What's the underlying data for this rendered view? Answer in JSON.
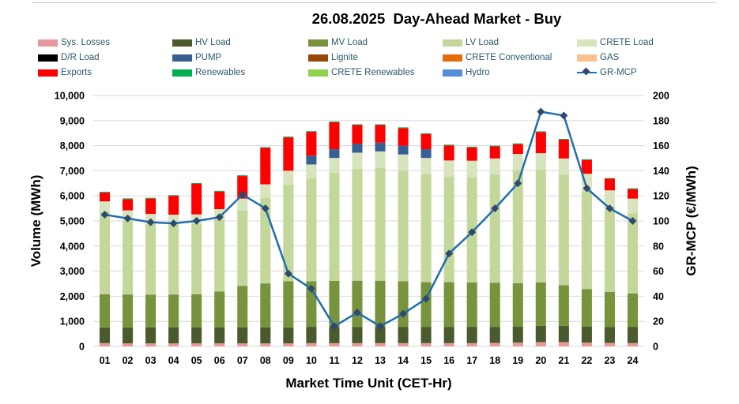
{
  "chart_data": {
    "type": "bar",
    "stacked": true,
    "title": "26.08.2025  Day-Ahead Market - Buy",
    "xlabel": "Market Time Unit (CET-Hr)",
    "ylabel": "Volume (MWh)",
    "y2label": "GR-MCP (€/MWh)",
    "ylim": [
      0,
      10000
    ],
    "y2lim": [
      0,
      200
    ],
    "y_ticks": [
      "0",
      "1,000",
      "2,000",
      "3,000",
      "4,000",
      "5,000",
      "6,000",
      "7,000",
      "8,000",
      "9,000",
      "10,000"
    ],
    "y2_ticks": [
      "0",
      "20",
      "40",
      "60",
      "80",
      "100",
      "120",
      "140",
      "160",
      "180",
      "200"
    ],
    "categories": [
      "01",
      "02",
      "03",
      "04",
      "05",
      "06",
      "07",
      "08",
      "09",
      "10",
      "11",
      "12",
      "13",
      "14",
      "15",
      "16",
      "17",
      "18",
      "19",
      "20",
      "21",
      "22",
      "23",
      "24"
    ],
    "series": [
      {
        "name": "Sys. Losses",
        "color": "#e6999b",
        "values": [
          130,
          120,
          120,
          120,
          120,
          120,
          120,
          120,
          120,
          130,
          130,
          130,
          130,
          130,
          130,
          130,
          130,
          140,
          150,
          170,
          170,
          150,
          140,
          130
        ]
      },
      {
        "name": "HV Load",
        "color": "#4a5a2c",
        "values": [
          620,
          630,
          640,
          640,
          640,
          640,
          640,
          640,
          630,
          640,
          640,
          640,
          640,
          640,
          640,
          640,
          640,
          640,
          640,
          650,
          650,
          640,
          640,
          640
        ]
      },
      {
        "name": "MV Load",
        "color": "#77933c",
        "values": [
          1330,
          1320,
          1300,
          1310,
          1320,
          1430,
          1650,
          1750,
          1850,
          1830,
          1840,
          1850,
          1850,
          1830,
          1790,
          1790,
          1780,
          1760,
          1730,
          1730,
          1620,
          1490,
          1390,
          1340
        ]
      },
      {
        "name": "LV Load",
        "color": "#c4d79b",
        "values": [
          3300,
          2950,
          2840,
          2800,
          2800,
          2880,
          3000,
          3400,
          3850,
          4100,
          4300,
          4450,
          4500,
          4400,
          4300,
          4200,
          4200,
          4300,
          4500,
          4500,
          4400,
          3900,
          3400,
          3200
        ]
      },
      {
        "name": "CRETE Load",
        "color": "#d7e4bd",
        "values": [
          400,
          400,
          380,
          380,
          380,
          400,
          480,
          550,
          550,
          550,
          600,
          650,
          650,
          650,
          650,
          650,
          650,
          650,
          650,
          650,
          650,
          700,
          650,
          580
        ]
      },
      {
        "name": "D/R Load",
        "color": "#000000",
        "values": [
          0,
          0,
          0,
          0,
          0,
          0,
          0,
          0,
          0,
          0,
          0,
          0,
          0,
          0,
          0,
          0,
          0,
          0,
          0,
          0,
          0,
          0,
          0,
          0
        ]
      },
      {
        "name": "PUMP",
        "color": "#366092",
        "values": [
          0,
          0,
          0,
          0,
          0,
          0,
          0,
          0,
          0,
          350,
          350,
          350,
          350,
          350,
          350,
          0,
          0,
          0,
          0,
          0,
          0,
          0,
          0,
          0
        ]
      },
      {
        "name": "Lignite",
        "color": "#974706",
        "values": [
          0,
          0,
          0,
          0,
          0,
          0,
          0,
          0,
          0,
          0,
          0,
          0,
          0,
          0,
          0,
          0,
          0,
          0,
          0,
          0,
          0,
          0,
          0,
          0
        ]
      },
      {
        "name": "CRETE Conventional",
        "color": "#e46c0a",
        "values": [
          0,
          0,
          0,
          0,
          0,
          0,
          0,
          0,
          0,
          0,
          0,
          0,
          0,
          0,
          0,
          0,
          0,
          0,
          0,
          0,
          0,
          0,
          0,
          0
        ]
      },
      {
        "name": "GAS",
        "color": "#fac090",
        "values": [
          0,
          0,
          0,
          0,
          0,
          0,
          0,
          0,
          0,
          0,
          0,
          0,
          0,
          0,
          0,
          0,
          0,
          0,
          0,
          0,
          0,
          0,
          0,
          0
        ]
      },
      {
        "name": "Exports",
        "color": "#ff0000",
        "values": [
          350,
          450,
          610,
          750,
          1220,
          700,
          900,
          1450,
          1330,
          950,
          1070,
          750,
          700,
          700,
          600,
          600,
          530,
          480,
          390,
          840,
          750,
          550,
          460,
          380
        ]
      },
      {
        "name": "Renewables",
        "color": "#00b050",
        "values": [
          30,
          30,
          30,
          30,
          30,
          30,
          30,
          30,
          30,
          30,
          30,
          30,
          30,
          30,
          30,
          30,
          30,
          30,
          30,
          30,
          30,
          30,
          30,
          30
        ]
      },
      {
        "name": "CRETE Renewables",
        "color": "#92d050",
        "values": [
          0,
          0,
          0,
          0,
          0,
          0,
          0,
          0,
          0,
          0,
          0,
          0,
          0,
          0,
          0,
          0,
          0,
          0,
          0,
          0,
          0,
          0,
          0,
          0
        ]
      },
      {
        "name": "Hydro",
        "color": "#558ed5",
        "values": [
          0,
          0,
          0,
          0,
          0,
          0,
          0,
          0,
          0,
          0,
          0,
          0,
          0,
          0,
          0,
          0,
          0,
          0,
          0,
          0,
          0,
          0,
          0,
          0
        ]
      }
    ],
    "line_series": {
      "name": "GR-MCP",
      "color": "#1f6ead",
      "marker_color": "#2f4a6d",
      "axis": "secondary",
      "values": [
        105,
        102,
        99,
        98,
        100,
        103,
        121,
        110,
        58,
        46,
        16,
        27,
        16,
        26,
        38,
        74,
        91,
        110,
        130,
        187,
        184,
        126,
        110,
        100
      ]
    },
    "legend_position": "top"
  }
}
